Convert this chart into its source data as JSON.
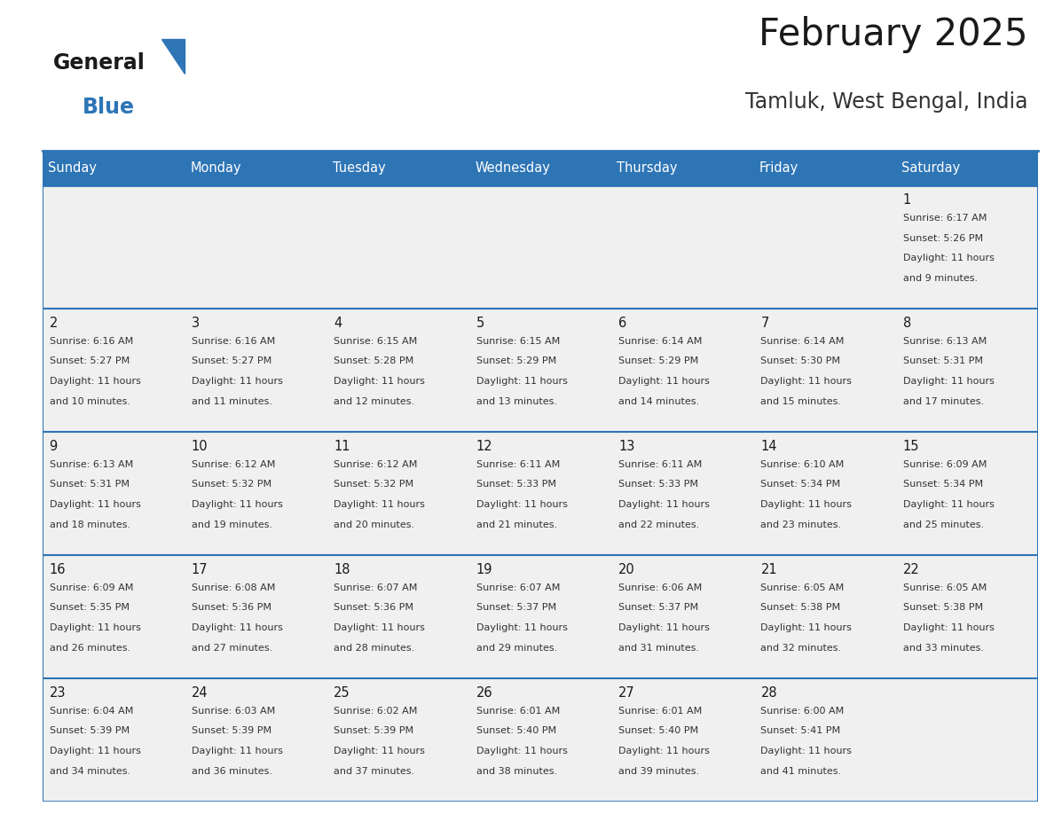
{
  "title": "February 2025",
  "subtitle": "Tamluk, West Bengal, India",
  "header_bg": "#2e75b6",
  "header_text_color": "#ffffff",
  "cell_bg_light": "#f0f0f0",
  "border_color": "#2e75b6",
  "day_names": [
    "Sunday",
    "Monday",
    "Tuesday",
    "Wednesday",
    "Thursday",
    "Friday",
    "Saturday"
  ],
  "title_color": "#1a1a1a",
  "subtitle_color": "#333333",
  "day_number_color": "#1a1a1a",
  "info_color": "#333333",
  "calendar": [
    [
      null,
      null,
      null,
      null,
      null,
      null,
      {
        "day": 1,
        "sunrise": "6:17 AM",
        "sunset": "5:26 PM",
        "daylight": "11 hours and 9 minutes"
      }
    ],
    [
      {
        "day": 2,
        "sunrise": "6:16 AM",
        "sunset": "5:27 PM",
        "daylight": "11 hours and 10 minutes"
      },
      {
        "day": 3,
        "sunrise": "6:16 AM",
        "sunset": "5:27 PM",
        "daylight": "11 hours and 11 minutes"
      },
      {
        "day": 4,
        "sunrise": "6:15 AM",
        "sunset": "5:28 PM",
        "daylight": "11 hours and 12 minutes"
      },
      {
        "day": 5,
        "sunrise": "6:15 AM",
        "sunset": "5:29 PM",
        "daylight": "11 hours and 13 minutes"
      },
      {
        "day": 6,
        "sunrise": "6:14 AM",
        "sunset": "5:29 PM",
        "daylight": "11 hours and 14 minutes"
      },
      {
        "day": 7,
        "sunrise": "6:14 AM",
        "sunset": "5:30 PM",
        "daylight": "11 hours and 15 minutes"
      },
      {
        "day": 8,
        "sunrise": "6:13 AM",
        "sunset": "5:31 PM",
        "daylight": "11 hours and 17 minutes"
      }
    ],
    [
      {
        "day": 9,
        "sunrise": "6:13 AM",
        "sunset": "5:31 PM",
        "daylight": "11 hours and 18 minutes"
      },
      {
        "day": 10,
        "sunrise": "6:12 AM",
        "sunset": "5:32 PM",
        "daylight": "11 hours and 19 minutes"
      },
      {
        "day": 11,
        "sunrise": "6:12 AM",
        "sunset": "5:32 PM",
        "daylight": "11 hours and 20 minutes"
      },
      {
        "day": 12,
        "sunrise": "6:11 AM",
        "sunset": "5:33 PM",
        "daylight": "11 hours and 21 minutes"
      },
      {
        "day": 13,
        "sunrise": "6:11 AM",
        "sunset": "5:33 PM",
        "daylight": "11 hours and 22 minutes"
      },
      {
        "day": 14,
        "sunrise": "6:10 AM",
        "sunset": "5:34 PM",
        "daylight": "11 hours and 23 minutes"
      },
      {
        "day": 15,
        "sunrise": "6:09 AM",
        "sunset": "5:34 PM",
        "daylight": "11 hours and 25 minutes"
      }
    ],
    [
      {
        "day": 16,
        "sunrise": "6:09 AM",
        "sunset": "5:35 PM",
        "daylight": "11 hours and 26 minutes"
      },
      {
        "day": 17,
        "sunrise": "6:08 AM",
        "sunset": "5:36 PM",
        "daylight": "11 hours and 27 minutes"
      },
      {
        "day": 18,
        "sunrise": "6:07 AM",
        "sunset": "5:36 PM",
        "daylight": "11 hours and 28 minutes"
      },
      {
        "day": 19,
        "sunrise": "6:07 AM",
        "sunset": "5:37 PM",
        "daylight": "11 hours and 29 minutes"
      },
      {
        "day": 20,
        "sunrise": "6:06 AM",
        "sunset": "5:37 PM",
        "daylight": "11 hours and 31 minutes"
      },
      {
        "day": 21,
        "sunrise": "6:05 AM",
        "sunset": "5:38 PM",
        "daylight": "11 hours and 32 minutes"
      },
      {
        "day": 22,
        "sunrise": "6:05 AM",
        "sunset": "5:38 PM",
        "daylight": "11 hours and 33 minutes"
      }
    ],
    [
      {
        "day": 23,
        "sunrise": "6:04 AM",
        "sunset": "5:39 PM",
        "daylight": "11 hours and 34 minutes"
      },
      {
        "day": 24,
        "sunrise": "6:03 AM",
        "sunset": "5:39 PM",
        "daylight": "11 hours and 36 minutes"
      },
      {
        "day": 25,
        "sunrise": "6:02 AM",
        "sunset": "5:39 PM",
        "daylight": "11 hours and 37 minutes"
      },
      {
        "day": 26,
        "sunrise": "6:01 AM",
        "sunset": "5:40 PM",
        "daylight": "11 hours and 38 minutes"
      },
      {
        "day": 27,
        "sunrise": "6:01 AM",
        "sunset": "5:40 PM",
        "daylight": "11 hours and 39 minutes"
      },
      {
        "day": 28,
        "sunrise": "6:00 AM",
        "sunset": "5:41 PM",
        "daylight": "11 hours and 41 minutes"
      },
      null
    ]
  ],
  "logo_text_general": "General",
  "logo_text_blue": "Blue",
  "logo_color_general": "#1a1a1a",
  "logo_color_blue": "#2e75b6",
  "fig_width": 11.88,
  "fig_height": 9.18,
  "dpi": 100
}
